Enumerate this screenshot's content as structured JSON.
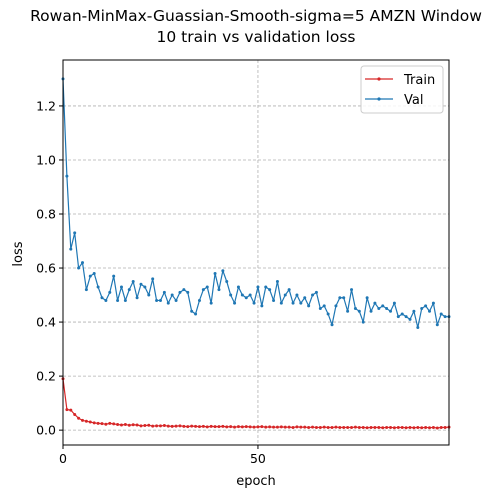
{
  "chart_data": {
    "type": "line",
    "title_lines": [
      "Rowan-MinMax-Guassian-Smooth-sigma=5 AMZN Window",
      "10 train vs validation loss"
    ],
    "xlabel": "epoch",
    "ylabel": "loss",
    "xlim": [
      0,
      99
    ],
    "ylim": [
      -0.055,
      1.37
    ],
    "xticks": [
      0,
      50
    ],
    "yticks": [
      0.0,
      0.2,
      0.4,
      0.6,
      0.8,
      1.0,
      1.2
    ],
    "ytick_labels": [
      "0.0",
      "0.2",
      "0.4",
      "0.6",
      "0.8",
      "1.0",
      "1.2"
    ],
    "grid": true,
    "legend_position": "top-right",
    "series": [
      {
        "name": "Train",
        "color": "#d62728",
        "values": [
          0.19,
          0.076,
          0.074,
          0.058,
          0.044,
          0.036,
          0.033,
          0.03,
          0.027,
          0.025,
          0.024,
          0.022,
          0.025,
          0.023,
          0.021,
          0.019,
          0.021,
          0.018,
          0.02,
          0.019,
          0.016,
          0.017,
          0.018,
          0.015,
          0.016,
          0.016,
          0.017,
          0.015,
          0.014,
          0.015,
          0.016,
          0.014,
          0.013,
          0.015,
          0.014,
          0.013,
          0.014,
          0.012,
          0.014,
          0.013,
          0.013,
          0.014,
          0.012,
          0.013,
          0.011,
          0.013,
          0.012,
          0.013,
          0.012,
          0.011,
          0.012,
          0.013,
          0.011,
          0.012,
          0.011,
          0.011,
          0.012,
          0.011,
          0.011,
          0.01,
          0.012,
          0.011,
          0.011,
          0.01,
          0.011,
          0.01,
          0.01,
          0.011,
          0.01,
          0.01,
          0.011,
          0.01,
          0.01,
          0.01,
          0.01,
          0.011,
          0.01,
          0.01,
          0.009,
          0.01,
          0.01,
          0.01,
          0.009,
          0.01,
          0.01,
          0.009,
          0.01,
          0.01,
          0.009,
          0.01,
          0.009,
          0.01,
          0.009,
          0.01,
          0.009,
          0.01,
          0.008,
          0.01,
          0.01,
          0.011
        ]
      },
      {
        "name": "Val",
        "color": "#1f77b4",
        "values": [
          1.3,
          0.94,
          0.67,
          0.73,
          0.6,
          0.62,
          0.52,
          0.57,
          0.58,
          0.53,
          0.49,
          0.48,
          0.51,
          0.57,
          0.48,
          0.53,
          0.48,
          0.52,
          0.55,
          0.49,
          0.54,
          0.53,
          0.5,
          0.56,
          0.48,
          0.48,
          0.51,
          0.47,
          0.5,
          0.48,
          0.51,
          0.52,
          0.51,
          0.44,
          0.43,
          0.48,
          0.52,
          0.53,
          0.47,
          0.58,
          0.52,
          0.59,
          0.55,
          0.5,
          0.47,
          0.53,
          0.5,
          0.49,
          0.5,
          0.47,
          0.53,
          0.46,
          0.53,
          0.52,
          0.48,
          0.55,
          0.47,
          0.5,
          0.52,
          0.47,
          0.5,
          0.47,
          0.49,
          0.46,
          0.5,
          0.51,
          0.45,
          0.46,
          0.43,
          0.39,
          0.46,
          0.49,
          0.49,
          0.44,
          0.52,
          0.45,
          0.44,
          0.4,
          0.49,
          0.44,
          0.47,
          0.45,
          0.46,
          0.45,
          0.44,
          0.47,
          0.42,
          0.43,
          0.42,
          0.41,
          0.44,
          0.38,
          0.45,
          0.46,
          0.44,
          0.47,
          0.39,
          0.43,
          0.42,
          0.42
        ]
      }
    ]
  }
}
